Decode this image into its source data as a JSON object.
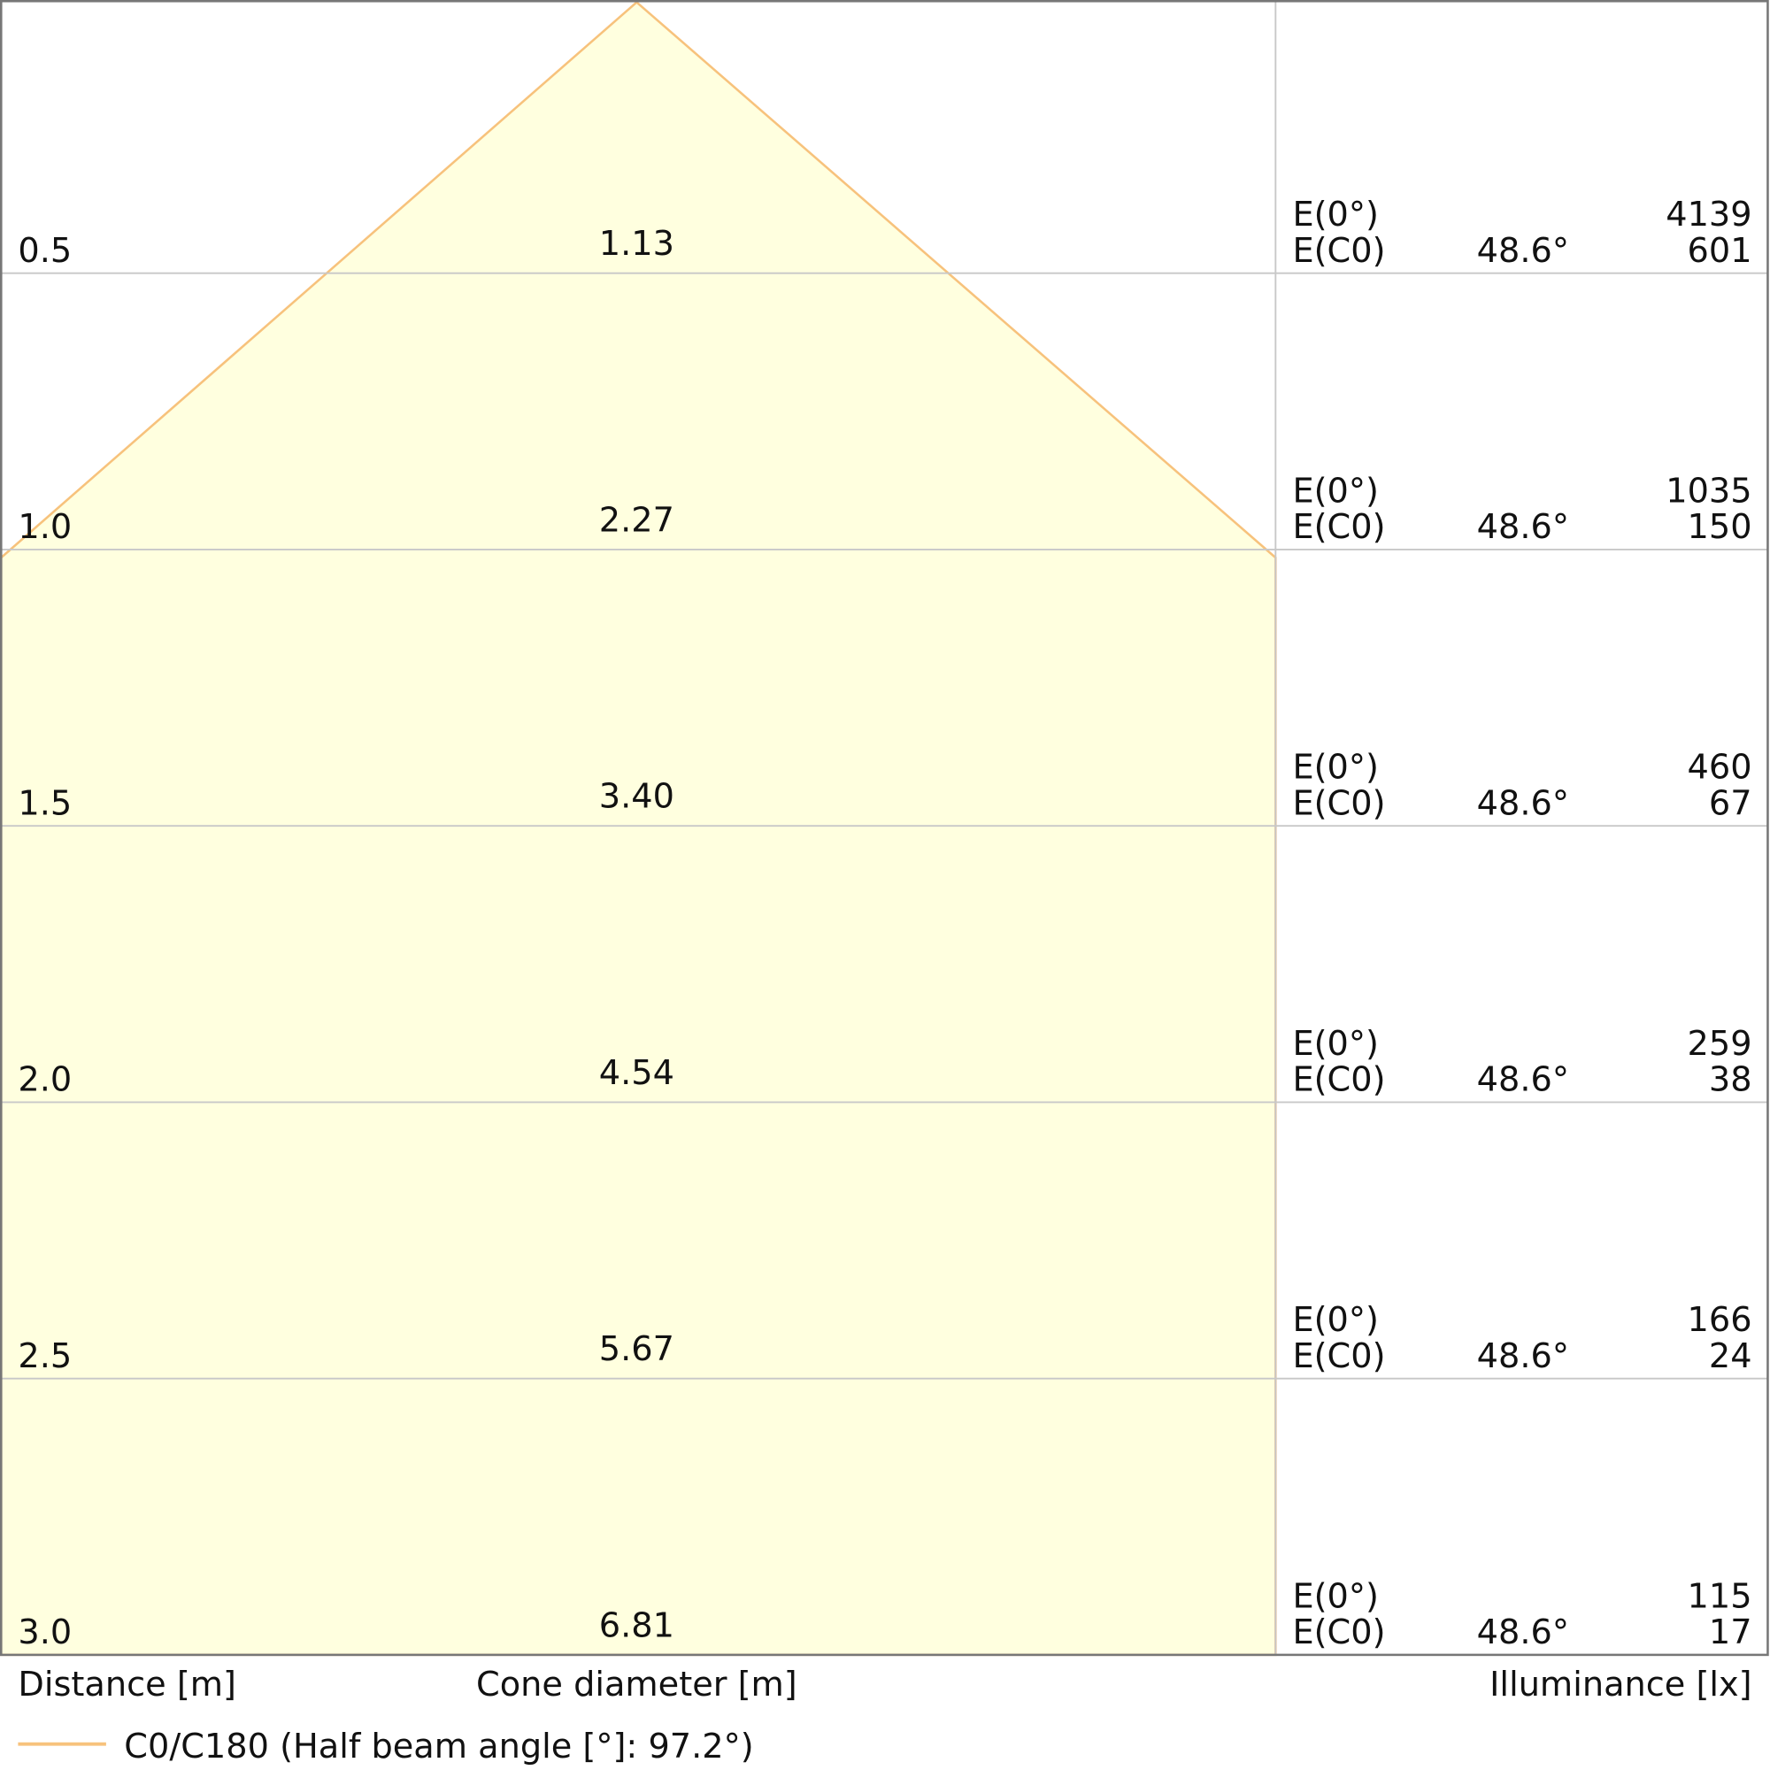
{
  "rows": [
    {
      "distance": "0.5",
      "diameter": "1.13",
      "e0_label": "E(0°)",
      "ec0_label": "E(C0)",
      "angle": "48.6°",
      "e0": "4139",
      "ec0": "601"
    },
    {
      "distance": "1.0",
      "diameter": "2.27",
      "e0_label": "E(0°)",
      "ec0_label": "E(C0)",
      "angle": "48.6°",
      "e0": "1035",
      "ec0": "150"
    },
    {
      "distance": "1.5",
      "diameter": "3.40",
      "e0_label": "E(0°)",
      "ec0_label": "E(C0)",
      "angle": "48.6°",
      "e0": "460",
      "ec0": "67"
    },
    {
      "distance": "2.0",
      "diameter": "4.54",
      "e0_label": "E(0°)",
      "ec0_label": "E(C0)",
      "angle": "48.6°",
      "e0": "259",
      "ec0": "38"
    },
    {
      "distance": "2.5",
      "diameter": "5.67",
      "e0_label": "E(0°)",
      "ec0_label": "E(C0)",
      "angle": "48.6°",
      "e0": "166",
      "ec0": "24"
    },
    {
      "distance": "3.0",
      "diameter": "6.81",
      "e0_label": "E(0°)",
      "ec0_label": "E(C0)",
      "angle": "48.6°",
      "e0": "115",
      "ec0": "17"
    }
  ],
  "footer": {
    "distance": "Distance [m]",
    "diameter": "Cone diameter [m]",
    "illuminance": "Illuminance [lx]"
  },
  "legend": "C0/C180 (Half beam angle [°]: 97.2°)"
}
